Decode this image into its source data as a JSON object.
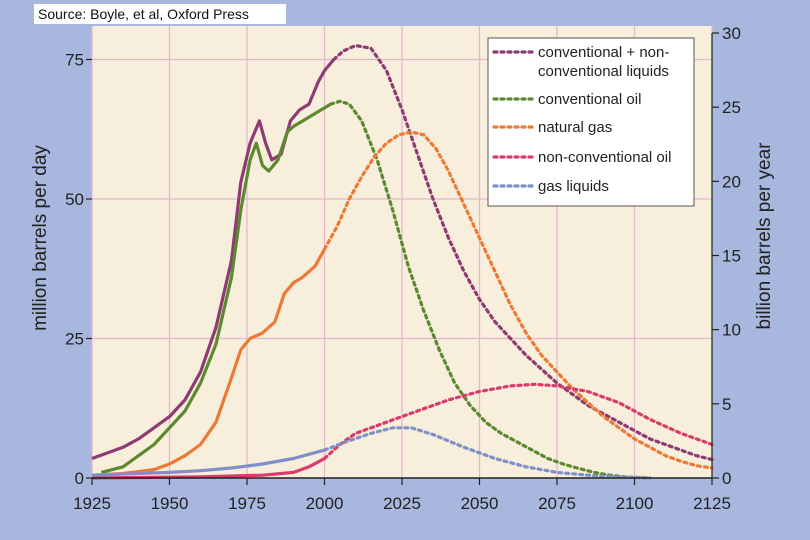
{
  "source": "Source: Boyle, et al, Oxford Press",
  "colors": {
    "frame_bg": "#a8b7dd",
    "plot_bg": "#f7eedb",
    "grid": "#e6b6cc",
    "legend_bg": "#ffffff",
    "conventional_plus": "#8d3b72",
    "conventional_oil": "#5b8a2e",
    "natural_gas": "#ec7a35",
    "non_conventional": "#d93c6b",
    "gas_liquids": "#7f8fc8"
  },
  "chart_data": {
    "type": "line",
    "xlabel": "",
    "ylabel": "million barrels per day",
    "y2label": "billion barrels per year",
    "xlim": [
      1925,
      2125
    ],
    "ylim": [
      0,
      81
    ],
    "y2lim": [
      0,
      30
    ],
    "x_ticks": [
      "1925",
      "1950",
      "1975",
      "2000",
      "2025",
      "2050",
      "2075",
      "2100",
      "2125"
    ],
    "y_ticks": [
      "0",
      "25",
      "50",
      "75"
    ],
    "y2_ticks": [
      "0",
      "5",
      "10",
      "15",
      "20",
      "25",
      "30"
    ],
    "grid": true,
    "legend": "top-right",
    "note": "solid = historical data, dotted = projection",
    "series": [
      {
        "name": "conventional + non-conventional liquids",
        "legend_lines": [
          "conventional + non-",
          "conventional liquids"
        ],
        "color_key": "conventional_plus",
        "axis": "left",
        "historical": [
          [
            1925,
            3.5
          ],
          [
            1930,
            4.5
          ],
          [
            1935,
            5.5
          ],
          [
            1940,
            7
          ],
          [
            1945,
            9
          ],
          [
            1950,
            11
          ],
          [
            1955,
            14
          ],
          [
            1960,
            19
          ],
          [
            1965,
            27
          ],
          [
            1970,
            39
          ],
          [
            1973,
            53
          ],
          [
            1976,
            60
          ],
          [
            1979,
            64
          ],
          [
            1981,
            60
          ],
          [
            1983,
            57
          ],
          [
            1986,
            58
          ],
          [
            1989,
            64
          ],
          [
            1992,
            66
          ],
          [
            1995,
            67
          ],
          [
            1998,
            71
          ],
          [
            2000,
            73
          ],
          [
            2003,
            75
          ]
        ],
        "projected": [
          [
            2003,
            75
          ],
          [
            2006,
            76.5
          ],
          [
            2010,
            77.5
          ],
          [
            2015,
            77
          ],
          [
            2020,
            73
          ],
          [
            2025,
            66
          ],
          [
            2030,
            58
          ],
          [
            2035,
            50
          ],
          [
            2040,
            43
          ],
          [
            2045,
            37
          ],
          [
            2050,
            32
          ],
          [
            2055,
            28
          ],
          [
            2060,
            25
          ],
          [
            2065,
            22
          ],
          [
            2070,
            19.5
          ],
          [
            2075,
            17
          ],
          [
            2080,
            15
          ],
          [
            2085,
            13
          ],
          [
            2090,
            11.5
          ],
          [
            2095,
            10
          ],
          [
            2100,
            8.5
          ],
          [
            2105,
            7
          ],
          [
            2110,
            6
          ],
          [
            2115,
            5
          ],
          [
            2120,
            4
          ],
          [
            2125,
            3.3
          ]
        ]
      },
      {
        "name": "conventional oil",
        "legend_lines": [
          "conventional oil"
        ],
        "color_key": "conventional_oil",
        "axis": "left",
        "historical": [
          [
            1928,
            1
          ],
          [
            1935,
            2
          ],
          [
            1940,
            4
          ],
          [
            1945,
            6
          ],
          [
            1950,
            9
          ],
          [
            1955,
            12
          ],
          [
            1960,
            17
          ],
          [
            1965,
            24
          ],
          [
            1970,
            36
          ],
          [
            1973,
            48
          ],
          [
            1976,
            57
          ],
          [
            1978,
            60
          ],
          [
            1980,
            56
          ],
          [
            1982,
            55
          ],
          [
            1985,
            57
          ],
          [
            1988,
            62
          ],
          [
            1990,
            63
          ],
          [
            1993,
            64
          ],
          [
            1996,
            65
          ],
          [
            1999,
            66
          ],
          [
            2002,
            67
          ]
        ],
        "projected": [
          [
            2002,
            67
          ],
          [
            2005,
            67.5
          ],
          [
            2008,
            67
          ],
          [
            2012,
            64
          ],
          [
            2017,
            57
          ],
          [
            2022,
            48
          ],
          [
            2027,
            38
          ],
          [
            2032,
            30
          ],
          [
            2037,
            23
          ],
          [
            2042,
            17
          ],
          [
            2047,
            13
          ],
          [
            2052,
            10
          ],
          [
            2057,
            8
          ],
          [
            2062,
            6.5
          ],
          [
            2067,
            5
          ],
          [
            2072,
            3.5
          ],
          [
            2077,
            2.5
          ],
          [
            2082,
            1.7
          ],
          [
            2087,
            1
          ],
          [
            2092,
            0.5
          ],
          [
            2097,
            0.2
          ],
          [
            2105,
            0
          ]
        ]
      },
      {
        "name": "natural gas",
        "legend_lines": [
          "natural gas"
        ],
        "color_key": "natural_gas",
        "axis": "left",
        "historical": [
          [
            1925,
            0.5
          ],
          [
            1935,
            0.8
          ],
          [
            1945,
            1.5
          ],
          [
            1950,
            2.5
          ],
          [
            1955,
            4
          ],
          [
            1960,
            6
          ],
          [
            1965,
            10
          ],
          [
            1970,
            18
          ],
          [
            1973,
            23
          ],
          [
            1976,
            25
          ],
          [
            1980,
            26
          ],
          [
            1984,
            28
          ],
          [
            1987,
            33
          ],
          [
            1990,
            35
          ],
          [
            1993,
            36
          ],
          [
            1997,
            38
          ],
          [
            2000,
            41
          ]
        ],
        "projected": [
          [
            2000,
            41
          ],
          [
            2004,
            45
          ],
          [
            2008,
            50
          ],
          [
            2012,
            54
          ],
          [
            2016,
            57.5
          ],
          [
            2020,
            60
          ],
          [
            2024,
            61.5
          ],
          [
            2028,
            62
          ],
          [
            2032,
            61.5
          ],
          [
            2036,
            59
          ],
          [
            2040,
            55
          ],
          [
            2045,
            49
          ],
          [
            2050,
            43
          ],
          [
            2055,
            37
          ],
          [
            2060,
            31
          ],
          [
            2065,
            26
          ],
          [
            2070,
            22
          ],
          [
            2075,
            19
          ],
          [
            2080,
            16
          ],
          [
            2085,
            13.5
          ],
          [
            2090,
            11
          ],
          [
            2095,
            9
          ],
          [
            2100,
            7
          ],
          [
            2105,
            5.5
          ],
          [
            2110,
            4
          ],
          [
            2115,
            3
          ],
          [
            2120,
            2.2
          ],
          [
            2125,
            1.8
          ]
        ]
      },
      {
        "name": "non-conventional oil",
        "legend_lines": [
          "non-conventional oil"
        ],
        "color_key": "non_conventional",
        "axis": "left",
        "historical": [
          [
            1925,
            0
          ],
          [
            1960,
            0.2
          ],
          [
            1980,
            0.5
          ],
          [
            1990,
            1
          ],
          [
            1995,
            2
          ],
          [
            2000,
            3.5
          ]
        ],
        "projected": [
          [
            2000,
            3.5
          ],
          [
            2005,
            6
          ],
          [
            2010,
            8
          ],
          [
            2020,
            10
          ],
          [
            2030,
            12
          ],
          [
            2040,
            14
          ],
          [
            2050,
            15.5
          ],
          [
            2060,
            16.5
          ],
          [
            2068,
            16.8
          ],
          [
            2075,
            16.5
          ],
          [
            2085,
            15.5
          ],
          [
            2095,
            13.5
          ],
          [
            2105,
            10.5
          ],
          [
            2115,
            8
          ],
          [
            2125,
            6
          ]
        ]
      },
      {
        "name": "gas liquids",
        "legend_lines": [
          "gas liquids"
        ],
        "color_key": "gas_liquids",
        "axis": "left",
        "historical": [
          [
            1925,
            0.5
          ],
          [
            1950,
            1
          ],
          [
            1960,
            1.3
          ],
          [
            1970,
            1.8
          ],
          [
            1980,
            2.5
          ],
          [
            1990,
            3.5
          ],
          [
            2000,
            5
          ]
        ],
        "projected": [
          [
            2000,
            5
          ],
          [
            2007,
            6.5
          ],
          [
            2015,
            8
          ],
          [
            2022,
            9
          ],
          [
            2028,
            9
          ],
          [
            2035,
            7.8
          ],
          [
            2045,
            5.5
          ],
          [
            2055,
            3.5
          ],
          [
            2065,
            2
          ],
          [
            2075,
            1
          ],
          [
            2085,
            0.5
          ],
          [
            2095,
            0.2
          ],
          [
            2105,
            0
          ]
        ]
      }
    ]
  }
}
